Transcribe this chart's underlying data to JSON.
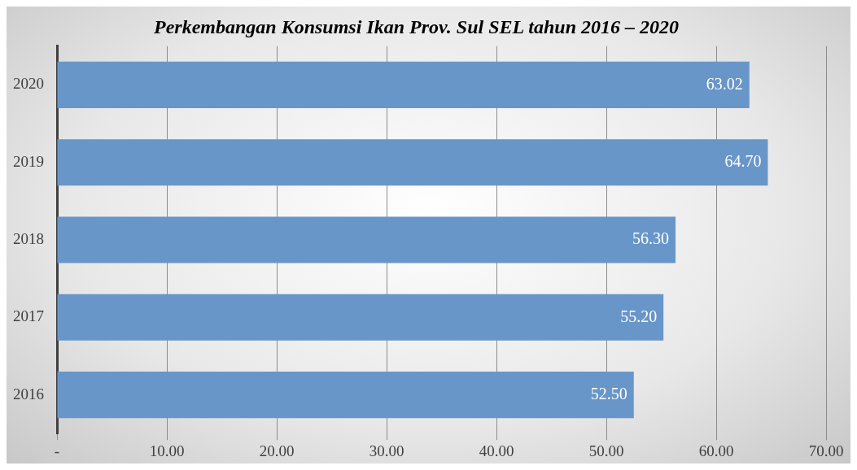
{
  "chart_data": {
    "type": "bar",
    "orientation": "horizontal",
    "title": "Perkembangan Konsumsi Ikan Prov. Sul SEL tahun 2016 – 2020",
    "categories": [
      "2020",
      "2019",
      "2018",
      "2017",
      "2016"
    ],
    "values": [
      63.02,
      64.7,
      56.3,
      55.2,
      52.5
    ],
    "value_labels": [
      "63.02",
      "64.70",
      "56.30",
      "55.20",
      "52.50"
    ],
    "color": "#6896c8",
    "xlim": [
      0,
      70
    ],
    "xticks": [
      {
        "value": 0,
        "label": "-"
      },
      {
        "value": 10,
        "label": "10.00"
      },
      {
        "value": 20,
        "label": "20.00"
      },
      {
        "value": 30,
        "label": "30.00"
      },
      {
        "value": 40,
        "label": "40.00"
      },
      {
        "value": 50,
        "label": "50.00"
      },
      {
        "value": 60,
        "label": "60.00"
      },
      {
        "value": 70,
        "label": "70.00"
      }
    ],
    "grid": "x",
    "legend": false
  }
}
